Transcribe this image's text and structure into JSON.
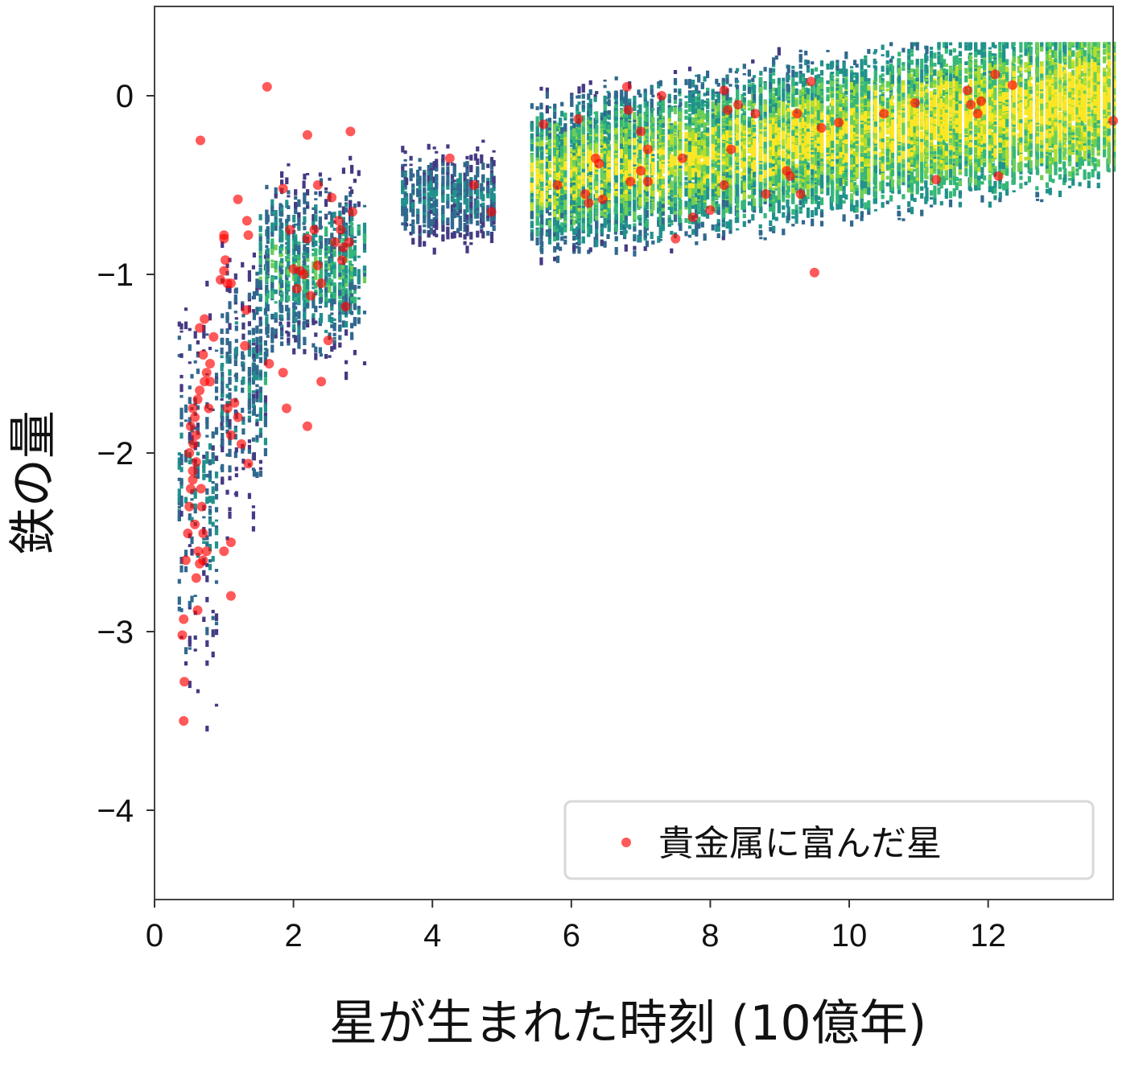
{
  "chart_data": {
    "type": "heatmap",
    "title": "",
    "xlabel": "星が生まれた時刻 (10億年)",
    "ylabel": "鉄の量",
    "xlim": [
      0,
      13.8
    ],
    "ylim": [
      -4.5,
      0.5
    ],
    "x_ticks": [
      0,
      2,
      4,
      6,
      8,
      10,
      12
    ],
    "y_ticks": [
      0,
      -1,
      -2,
      -3,
      -4
    ],
    "x_tick_labels": [
      "0",
      "2",
      "4",
      "6",
      "8",
      "10",
      "12"
    ],
    "y_tick_labels": [
      "0",
      "−1",
      "−2",
      "−3",
      "−4"
    ],
    "grid": false,
    "colormap": "viridis",
    "density_regions": [
      {
        "x": [
          0.3,
          0.9
        ],
        "y": [
          -4.5,
          -1.0
        ],
        "density": "low-medium"
      },
      {
        "x": [
          0.9,
          1.6
        ],
        "y": [
          -2.6,
          -0.6
        ],
        "density": "low-medium"
      },
      {
        "x": [
          1.5,
          3.0
        ],
        "y": [
          -1.6,
          -0.3
        ],
        "density": "medium"
      },
      {
        "x": [
          3.5,
          4.9
        ],
        "y": [
          -0.9,
          -0.2
        ],
        "density": "low-medium"
      },
      {
        "x": [
          5.4,
          13.8
        ],
        "y": [
          -1.4,
          0.3
        ],
        "density": "high"
      }
    ],
    "legend": {
      "label": "貴金属に富んだ星",
      "position": "lower-right",
      "marker_color": "#ff0000"
    },
    "series": [
      {
        "name": "貴金属に富んだ星",
        "color": "#ff0000",
        "points": [
          [
            0.42,
            -3.5
          ],
          [
            0.4,
            -3.02
          ],
          [
            0.43,
            -3.28
          ],
          [
            0.42,
            -2.93
          ],
          [
            0.45,
            -2.6
          ],
          [
            0.48,
            -2.45
          ],
          [
            0.5,
            -2.3
          ],
          [
            0.52,
            -2.2
          ],
          [
            0.55,
            -2.1
          ],
          [
            0.5,
            -2.0
          ],
          [
            0.56,
            -1.95
          ],
          [
            0.6,
            -1.9
          ],
          [
            0.52,
            -1.85
          ],
          [
            0.58,
            -1.8
          ],
          [
            0.55,
            -1.75
          ],
          [
            0.62,
            -1.7
          ],
          [
            0.65,
            -1.65
          ],
          [
            0.58,
            -2.4
          ],
          [
            0.63,
            -2.55
          ],
          [
            0.6,
            -2.7
          ],
          [
            0.65,
            -2.62
          ],
          [
            0.7,
            -2.45
          ],
          [
            0.68,
            -2.3
          ],
          [
            0.72,
            -1.6
          ],
          [
            0.75,
            -1.55
          ],
          [
            0.8,
            -1.5
          ],
          [
            0.7,
            -1.45
          ],
          [
            0.65,
            -1.3
          ],
          [
            0.72,
            -1.25
          ],
          [
            0.78,
            -1.75
          ],
          [
            0.62,
            -2.88
          ],
          [
            0.66,
            -0.25
          ],
          [
            0.55,
            -2.15
          ],
          [
            0.6,
            -2.05
          ],
          [
            0.67,
            -2.2
          ],
          [
            0.7,
            -2.6
          ],
          [
            0.75,
            -2.55
          ],
          [
            0.8,
            -1.6
          ],
          [
            0.85,
            -1.35
          ],
          [
            1.0,
            -0.98
          ],
          [
            1.02,
            -0.92
          ],
          [
            1.05,
            -1.05
          ],
          [
            0.95,
            -1.03
          ],
          [
            1.1,
            -1.05
          ],
          [
            1.0,
            -0.78
          ],
          [
            1.0,
            -0.8
          ],
          [
            1.05,
            -1.75
          ],
          [
            1.1,
            -1.9
          ],
          [
            1.15,
            -1.72
          ],
          [
            1.2,
            -1.8
          ],
          [
            1.25,
            -1.95
          ],
          [
            1.3,
            -1.4
          ],
          [
            1.32,
            -1.2
          ],
          [
            1.35,
            -2.06
          ],
          [
            1.1,
            -2.5
          ],
          [
            1.0,
            -2.55
          ],
          [
            1.1,
            -2.8
          ],
          [
            1.2,
            -0.58
          ],
          [
            1.33,
            -0.7
          ],
          [
            1.35,
            -0.78
          ],
          [
            1.62,
            0.05
          ],
          [
            1.65,
            -1.5
          ],
          [
            1.85,
            -1.55
          ],
          [
            1.9,
            -1.75
          ],
          [
            1.85,
            -0.52
          ],
          [
            1.95,
            -0.75
          ],
          [
            2.0,
            -0.97
          ],
          [
            2.05,
            -1.08
          ],
          [
            2.1,
            -0.98
          ],
          [
            2.15,
            -1.0
          ],
          [
            2.2,
            -0.8
          ],
          [
            2.25,
            -1.12
          ],
          [
            2.3,
            -0.75
          ],
          [
            2.35,
            -0.5
          ],
          [
            2.35,
            -0.95
          ],
          [
            2.4,
            -1.05
          ],
          [
            2.2,
            -0.22
          ],
          [
            2.2,
            -1.85
          ],
          [
            2.4,
            -1.6
          ],
          [
            2.5,
            -1.37
          ],
          [
            2.55,
            -0.57
          ],
          [
            2.6,
            -0.82
          ],
          [
            2.65,
            -0.7
          ],
          [
            2.68,
            -0.75
          ],
          [
            2.7,
            -0.92
          ],
          [
            2.72,
            -0.85
          ],
          [
            2.75,
            -1.18
          ],
          [
            2.8,
            -0.82
          ],
          [
            2.82,
            -0.2
          ],
          [
            2.85,
            -0.65
          ],
          [
            4.25,
            -0.35
          ],
          [
            4.6,
            -0.5
          ],
          [
            4.85,
            -0.65
          ],
          [
            5.6,
            -0.16
          ],
          [
            5.8,
            -0.5
          ],
          [
            6.1,
            -0.13
          ],
          [
            6.2,
            -0.55
          ],
          [
            6.25,
            -0.6
          ],
          [
            6.35,
            -0.35
          ],
          [
            6.4,
            -0.38
          ],
          [
            6.45,
            -0.58
          ],
          [
            6.8,
            0.05
          ],
          [
            6.82,
            -0.08
          ],
          [
            6.85,
            -0.48
          ],
          [
            7.0,
            -0.2
          ],
          [
            7.0,
            -0.42
          ],
          [
            7.1,
            -0.3
          ],
          [
            7.1,
            -0.48
          ],
          [
            7.3,
            0.0
          ],
          [
            7.5,
            -0.8
          ],
          [
            7.6,
            -0.35
          ],
          [
            7.75,
            -0.68
          ],
          [
            8.0,
            -0.64
          ],
          [
            8.2,
            0.03
          ],
          [
            8.2,
            -0.5
          ],
          [
            8.25,
            -0.08
          ],
          [
            8.3,
            -0.3
          ],
          [
            8.4,
            -0.05
          ],
          [
            8.65,
            -0.1
          ],
          [
            8.8,
            -0.55
          ],
          [
            9.1,
            -0.42
          ],
          [
            9.15,
            -0.45
          ],
          [
            9.25,
            -0.1
          ],
          [
            9.3,
            -0.55
          ],
          [
            9.45,
            0.08
          ],
          [
            9.5,
            -0.99
          ],
          [
            9.6,
            -0.18
          ],
          [
            9.85,
            -0.15
          ],
          [
            10.5,
            -0.1
          ],
          [
            10.95,
            -0.04
          ],
          [
            11.25,
            -0.47
          ],
          [
            11.7,
            0.03
          ],
          [
            11.75,
            -0.05
          ],
          [
            11.85,
            -0.1
          ],
          [
            11.9,
            -0.03
          ],
          [
            12.1,
            0.12
          ],
          [
            12.15,
            -0.45
          ],
          [
            12.35,
            0.06
          ],
          [
            13.8,
            -0.14
          ]
        ]
      }
    ]
  }
}
